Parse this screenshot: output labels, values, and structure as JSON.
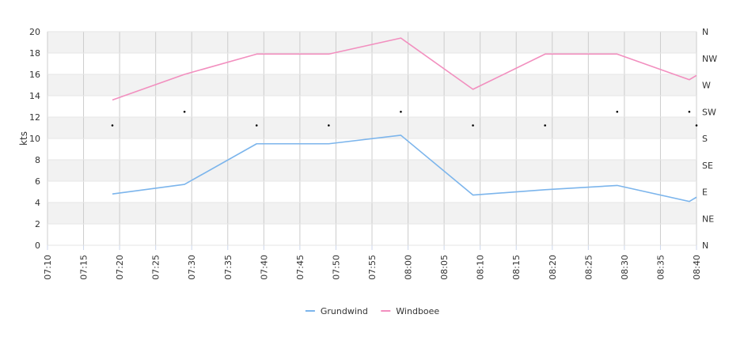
{
  "chart_data": {
    "type": "line",
    "ylabel": "kts",
    "ylim": [
      0,
      20
    ],
    "y_ticks": [
      "0",
      "2",
      "4",
      "6",
      "8",
      "10",
      "12",
      "14",
      "16",
      "18",
      "20"
    ],
    "x_tick_labels": [
      "07:10",
      "07:15",
      "07:20",
      "07:25",
      "07:30",
      "07:35",
      "07:40",
      "07:45",
      "07:50",
      "07:55",
      "08:00",
      "08:05",
      "08:10",
      "08:15",
      "08:20",
      "08:25",
      "08:30",
      "08:35",
      "08:40"
    ],
    "direction_axis": {
      "labels": [
        "N",
        "NE",
        "E",
        "SE",
        "S",
        "SW",
        "W",
        "NW",
        "N"
      ],
      "range_degrees": [
        0,
        360
      ]
    },
    "x": [
      "07:19",
      "07:29",
      "07:39",
      "07:49",
      "07:59",
      "08:09",
      "08:19",
      "08:29",
      "08:39",
      "08:40"
    ],
    "series": [
      {
        "name": "Grundwind",
        "color": "#7cb5ec",
        "values": [
          4.8,
          5.7,
          9.5,
          9.5,
          10.3,
          4.7,
          5.2,
          5.6,
          4.1,
          4.5
        ]
      },
      {
        "name": "Windboee",
        "color": "#f28fbf",
        "values": [
          13.6,
          16.0,
          17.9,
          17.9,
          19.4,
          14.6,
          17.9,
          17.9,
          15.5,
          15.9
        ]
      }
    ],
    "direction_points": {
      "x": [
        "07:19",
        "07:29",
        "07:39",
        "07:49",
        "07:59",
        "08:09",
        "08:19",
        "08:29",
        "08:39",
        "08:40"
      ],
      "degrees": [
        202,
        225,
        202,
        202,
        225,
        202,
        202,
        225,
        225,
        202
      ]
    },
    "grid": true,
    "legend_position": "bottom-center"
  }
}
